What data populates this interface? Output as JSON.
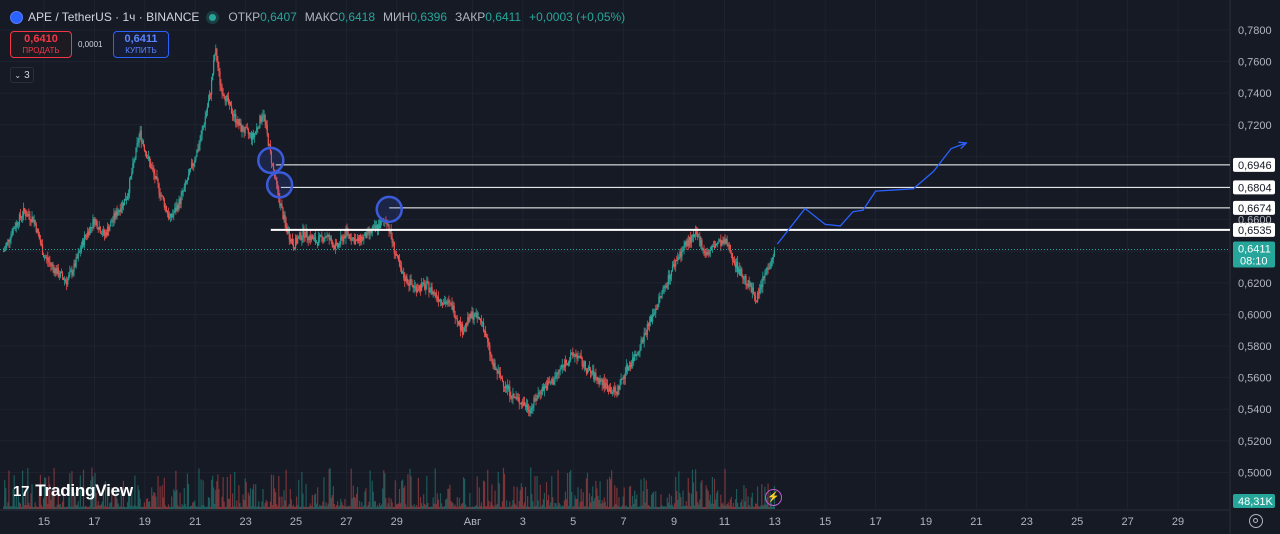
{
  "header": {
    "symbol": "APE / TetherUS · 1ч · BINANCE",
    "open_label": "ОТКР",
    "open": "0,6407",
    "high_label": "МАКС",
    "high": "0,6418",
    "low_label": "МИН",
    "low": "0,6396",
    "close_label": "ЗАКР",
    "close": "0,6411",
    "change": "+0,0003 (+0,05%)"
  },
  "trade": {
    "sell_price": "0,6410",
    "sell_label": "ПРОДАТЬ",
    "spread": "0,0001",
    "buy_price": "0,6411",
    "buy_label": "КУПИТЬ"
  },
  "indicators_toggle": "3",
  "brand": "TradingView",
  "colors": {
    "up": "#26a69a",
    "down": "#ef5350",
    "background": "#161a25",
    "projection": "#2962ff",
    "levels": "#ffffff",
    "markers": "#3b5bdb"
  },
  "chart_data": {
    "type": "candlestick",
    "price_range": [
      0.5,
      0.79
    ],
    "y_ticks": [
      "0,7800",
      "0,7600",
      "0,7400",
      "0,7200",
      "0,7000",
      "0,6800",
      "0,6600",
      "0,6400",
      "0,6200",
      "0,6000",
      "0,5800",
      "0,5600",
      "0,5400",
      "0,5200",
      "0,5000"
    ],
    "x_ticks": [
      {
        "label": "15",
        "day": 15
      },
      {
        "label": "17",
        "day": 17
      },
      {
        "label": "19",
        "day": 19
      },
      {
        "label": "21",
        "day": 21
      },
      {
        "label": "23",
        "day": 23
      },
      {
        "label": "25",
        "day": 25
      },
      {
        "label": "27",
        "day": 27
      },
      {
        "label": "29",
        "day": 29
      },
      {
        "label": "Авг",
        "day": 32
      },
      {
        "label": "3",
        "day": 34
      },
      {
        "label": "5",
        "day": 36
      },
      {
        "label": "7",
        "day": 38
      },
      {
        "label": "9",
        "day": 40
      },
      {
        "label": "11",
        "day": 42
      },
      {
        "label": "13",
        "day": 44
      },
      {
        "label": "15",
        "day": 46
      },
      {
        "label": "17",
        "day": 48
      },
      {
        "label": "19",
        "day": 50
      },
      {
        "label": "21",
        "day": 52
      },
      {
        "label": "23",
        "day": 54
      },
      {
        "label": "25",
        "day": 56
      },
      {
        "label": "27",
        "day": 58
      },
      {
        "label": "29",
        "day": 60
      }
    ],
    "price_path": [
      [
        13.4,
        0.64
      ],
      [
        13.8,
        0.655
      ],
      [
        14.2,
        0.665
      ],
      [
        14.6,
        0.66
      ],
      [
        15.0,
        0.637
      ],
      [
        15.5,
        0.627
      ],
      [
        15.9,
        0.621
      ],
      [
        16.2,
        0.63
      ],
      [
        16.6,
        0.648
      ],
      [
        17.0,
        0.66
      ],
      [
        17.4,
        0.65
      ],
      [
        17.8,
        0.662
      ],
      [
        18.3,
        0.675
      ],
      [
        18.8,
        0.715
      ],
      [
        19.1,
        0.7
      ],
      [
        19.5,
        0.682
      ],
      [
        20.0,
        0.66
      ],
      [
        20.4,
        0.672
      ],
      [
        20.8,
        0.69
      ],
      [
        21.2,
        0.71
      ],
      [
        21.6,
        0.74
      ],
      [
        21.8,
        0.768
      ],
      [
        22.0,
        0.745
      ],
      [
        22.4,
        0.73
      ],
      [
        22.8,
        0.718
      ],
      [
        23.3,
        0.712
      ],
      [
        23.7,
        0.728
      ],
      [
        24.0,
        0.7
      ],
      [
        24.3,
        0.675
      ],
      [
        24.6,
        0.655
      ],
      [
        24.9,
        0.644
      ],
      [
        25.3,
        0.652
      ],
      [
        25.8,
        0.646
      ],
      [
        26.2,
        0.65
      ],
      [
        26.6,
        0.642
      ],
      [
        27.0,
        0.652
      ],
      [
        27.4,
        0.646
      ],
      [
        27.8,
        0.65
      ],
      [
        28.2,
        0.655
      ],
      [
        28.6,
        0.66
      ],
      [
        28.9,
        0.641
      ],
      [
        29.2,
        0.625
      ],
      [
        29.7,
        0.617
      ],
      [
        30.2,
        0.618
      ],
      [
        30.7,
        0.61
      ],
      [
        31.2,
        0.605
      ],
      [
        31.6,
        0.59
      ],
      [
        32.0,
        0.6
      ],
      [
        32.4,
        0.595
      ],
      [
        32.8,
        0.568
      ],
      [
        33.2,
        0.558
      ],
      [
        33.6,
        0.548
      ],
      [
        34.0,
        0.544
      ],
      [
        34.3,
        0.54
      ],
      [
        34.7,
        0.552
      ],
      [
        35.2,
        0.558
      ],
      [
        35.7,
        0.57
      ],
      [
        36.1,
        0.575
      ],
      [
        36.5,
        0.566
      ],
      [
        36.9,
        0.56
      ],
      [
        37.3,
        0.555
      ],
      [
        37.7,
        0.55
      ],
      [
        38.1,
        0.565
      ],
      [
        38.5,
        0.575
      ],
      [
        38.9,
        0.59
      ],
      [
        39.3,
        0.605
      ],
      [
        39.7,
        0.62
      ],
      [
        40.1,
        0.635
      ],
      [
        40.5,
        0.645
      ],
      [
        40.9,
        0.65
      ],
      [
        41.3,
        0.638
      ],
      [
        41.7,
        0.645
      ],
      [
        42.1,
        0.645
      ],
      [
        42.5,
        0.63
      ],
      [
        42.9,
        0.62
      ],
      [
        43.3,
        0.61
      ],
      [
        43.6,
        0.625
      ],
      [
        44.0,
        0.64
      ]
    ],
    "last_price": "0,6411",
    "countdown": "08:10",
    "volume_label": "48,31K",
    "levels": [
      {
        "price": 0.6946,
        "label": "0,6946",
        "from_day": 24.2
      },
      {
        "price": 0.6804,
        "label": "0,6804",
        "from_day": 24.4
      },
      {
        "price": 0.6674,
        "label": "0,6674",
        "from_day": 28.7
      },
      {
        "price": 0.6535,
        "label": "0,6535",
        "from_day": 24.0
      }
    ],
    "markers": [
      {
        "day": 24.0,
        "price": 0.6975
      },
      {
        "day": 24.35,
        "price": 0.682
      },
      {
        "day": 28.7,
        "price": 0.6665
      }
    ],
    "projection": [
      [
        44.1,
        0.6445
      ],
      [
        45.2,
        0.667
      ],
      [
        46.0,
        0.657
      ],
      [
        46.6,
        0.656
      ],
      [
        47.1,
        0.665
      ],
      [
        47.5,
        0.666
      ],
      [
        48.0,
        0.678
      ],
      [
        49.5,
        0.6795
      ],
      [
        50.3,
        0.6905
      ],
      [
        51.0,
        0.705
      ],
      [
        51.6,
        0.7085
      ]
    ]
  }
}
